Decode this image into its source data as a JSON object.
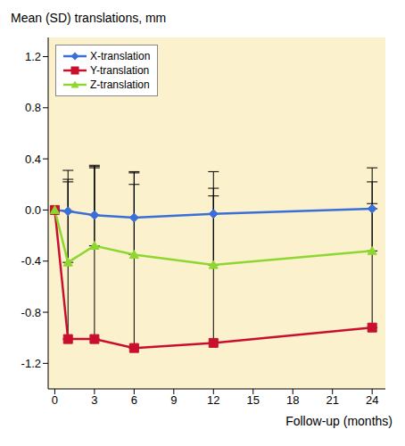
{
  "chart_data": {
    "type": "line",
    "title": "Mean (SD) translations, mm",
    "x_label": "Follow-up (months)",
    "x": [
      0,
      1,
      3,
      6,
      12,
      24
    ],
    "xlim": [
      -0.5,
      25
    ],
    "xticks": [
      0,
      3,
      6,
      9,
      12,
      15,
      18,
      21,
      24
    ],
    "ylim": [
      -1.4,
      1.35
    ],
    "yticks": [
      -1.2,
      -0.8,
      -0.4,
      {
        "value": 0,
        "label": "0.0"
      },
      0.4,
      0.8,
      1.2
    ],
    "grid": false,
    "legend": "upper left",
    "series": [
      {
        "name": "X-translation",
        "color": "#3a6fd8",
        "marker": "diamond",
        "values": [
          0,
          -0.01,
          -0.04,
          -0.06,
          -0.03,
          0.01
        ],
        "sd": [
          null,
          0.32,
          0.37,
          0.36,
          0.33,
          0.32
        ]
      },
      {
        "name": "Y-translation",
        "color": "#c8102e",
        "marker": "square",
        "values": [
          0,
          -1.01,
          -1.01,
          -1.08,
          -1.04,
          -0.92
        ],
        "sd": [
          null,
          1.23,
          1.36,
          1.28,
          1.15,
          0.97
        ]
      },
      {
        "name": "Z-translation",
        "color": "#8ed630",
        "marker": "triangle",
        "values": [
          0,
          -0.41,
          -0.28,
          -0.35,
          -0.43,
          -0.32
        ],
        "sd": [
          null,
          0.65,
          0.62,
          0.64,
          0.6,
          0.54
        ]
      }
    ]
  }
}
